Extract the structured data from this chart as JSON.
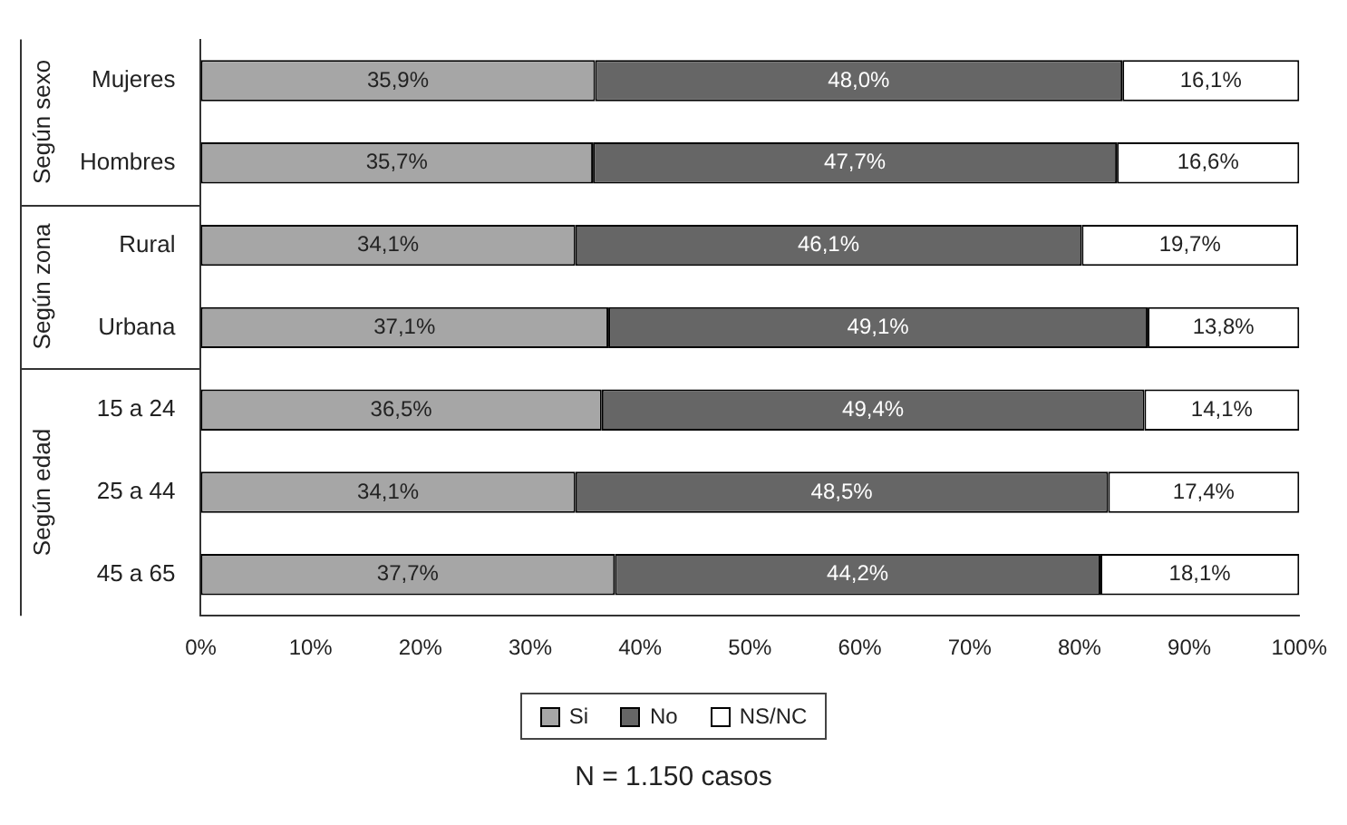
{
  "chart_data": {
    "type": "bar",
    "orientation": "horizontal",
    "stacked": true,
    "categories": [
      "Mujeres",
      "Hombres",
      "Rural",
      "Urbana",
      "15 a 24",
      "25 a 44",
      "45 a 65"
    ],
    "series": [
      {
        "name": "Si",
        "color": "#a6a6a6",
        "values": [
          35.9,
          35.7,
          34.1,
          37.1,
          36.5,
          34.1,
          37.7
        ],
        "value_labels": [
          "35,9%",
          "35,7%",
          "34,1%",
          "37,1%",
          "36,5%",
          "34,1%",
          "37,7%"
        ]
      },
      {
        "name": "No",
        "color": "#666666",
        "values": [
          48.0,
          47.7,
          46.1,
          49.1,
          49.4,
          48.5,
          44.2
        ],
        "value_labels": [
          "48,0%",
          "47,7%",
          "46,1%",
          "49,1%",
          "49,4%",
          "48,5%",
          "44,2%"
        ]
      },
      {
        "name": "NS/NC",
        "color": "#ffffff",
        "values": [
          16.1,
          16.6,
          19.7,
          13.8,
          14.1,
          17.4,
          18.1
        ],
        "value_labels": [
          "16,1%",
          "16,6%",
          "19,7%",
          "13,8%",
          "14,1%",
          "17,4%",
          "18,1%"
        ]
      }
    ],
    "xlim": [
      0,
      100
    ],
    "xticks": [
      {
        "value": 0,
        "label": "0%"
      },
      {
        "value": 10,
        "label": "10%"
      },
      {
        "value": 20,
        "label": "20%"
      },
      {
        "value": 30,
        "label": "30%"
      },
      {
        "value": 40,
        "label": "40%"
      },
      {
        "value": 50,
        "label": "50%"
      },
      {
        "value": 60,
        "label": "60%"
      },
      {
        "value": 70,
        "label": "70%"
      },
      {
        "value": 80,
        "label": "80%"
      },
      {
        "value": 90,
        "label": "90%"
      },
      {
        "value": 100,
        "label": "100%"
      }
    ],
    "legend": "bottom",
    "grid": false,
    "annotations": [
      "Según sexo",
      "Según zona",
      "Según edad",
      "N = 1.150 casos"
    ]
  }
}
